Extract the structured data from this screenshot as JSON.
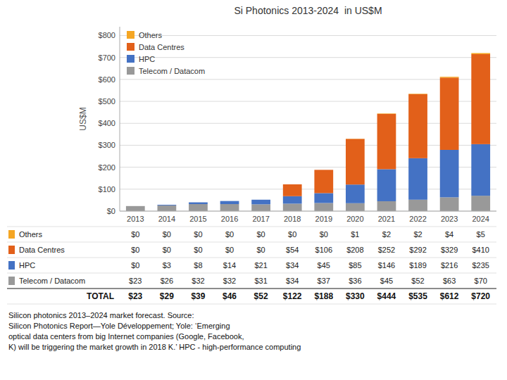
{
  "chart_data": {
    "type": "bar",
    "stacked": true,
    "title": "Si Photonics 2013-2024  in US$M",
    "ylabel": "US$M",
    "categories": [
      "2013",
      "2014",
      "2015",
      "2016",
      "2017",
      "2018",
      "2019",
      "2020",
      "2021",
      "2022",
      "2023",
      "2024"
    ],
    "series": [
      {
        "name": "Telecom / Datacom",
        "color": "#999999",
        "values": [
          23,
          26,
          32,
          32,
          31,
          34,
          37,
          36,
          45,
          52,
          63,
          70
        ],
        "value_labels": [
          "$23",
          "$26",
          "$32",
          "$32",
          "$31",
          "$34",
          "$37",
          "$36",
          "$45",
          "$52",
          "$63",
          "$70"
        ]
      },
      {
        "name": "HPC",
        "color": "#4472c4",
        "values": [
          0,
          3,
          8,
          14,
          21,
          34,
          45,
          85,
          146,
          189,
          216,
          235
        ],
        "value_labels": [
          "$0",
          "$3",
          "$8",
          "$14",
          "$21",
          "$34",
          "$45",
          "$85",
          "$146",
          "$189",
          "$216",
          "$235"
        ]
      },
      {
        "name": "Data Centres",
        "color": "#e2601a",
        "values": [
          0,
          0,
          0,
          0,
          0,
          54,
          106,
          208,
          252,
          292,
          329,
          410
        ],
        "value_labels": [
          "$0",
          "$0",
          "$0",
          "$0",
          "$0",
          "$54",
          "$106",
          "$208",
          "$252",
          "$292",
          "$329",
          "$410"
        ]
      },
      {
        "name": "Others",
        "color": "#f5a623",
        "values": [
          0,
          0,
          0,
          0,
          0,
          0,
          0,
          1,
          2,
          2,
          4,
          5
        ],
        "value_labels": [
          "$0",
          "$0",
          "$0",
          "$0",
          "$0",
          "$0",
          "$0",
          "$1",
          "$2",
          "$2",
          "$4",
          "$5"
        ]
      }
    ],
    "total_label": "TOTAL",
    "total_labels": [
      "$23",
      "$29",
      "$39",
      "$46",
      "$52",
      "$122",
      "$188",
      "$330",
      "$444",
      "$535",
      "$612",
      "$720"
    ],
    "ylim": [
      0,
      840
    ],
    "yticks": [
      {
        "value": 0,
        "label": "$0"
      },
      {
        "value": 100,
        "label": "$100"
      },
      {
        "value": 200,
        "label": "$200"
      },
      {
        "value": 300,
        "label": "$300"
      },
      {
        "value": 400,
        "label": "$400"
      },
      {
        "value": 500,
        "label": "$500"
      },
      {
        "value": 600,
        "label": "$600"
      },
      {
        "value": 700,
        "label": "$700"
      },
      {
        "value": 800,
        "label": "$800"
      }
    ],
    "grid": true,
    "legend": "upper left",
    "caption": "Silicon photonics 2013–2024 market forecast. Source:\nSilicon Photonics Report—Yole Développement; Yole: ‘Emerging\noptical data centers from big Internet companies (Google, Facebook,\nK) will be triggering the market growth in 2018 K.’ HPC - high-performance computing"
  }
}
